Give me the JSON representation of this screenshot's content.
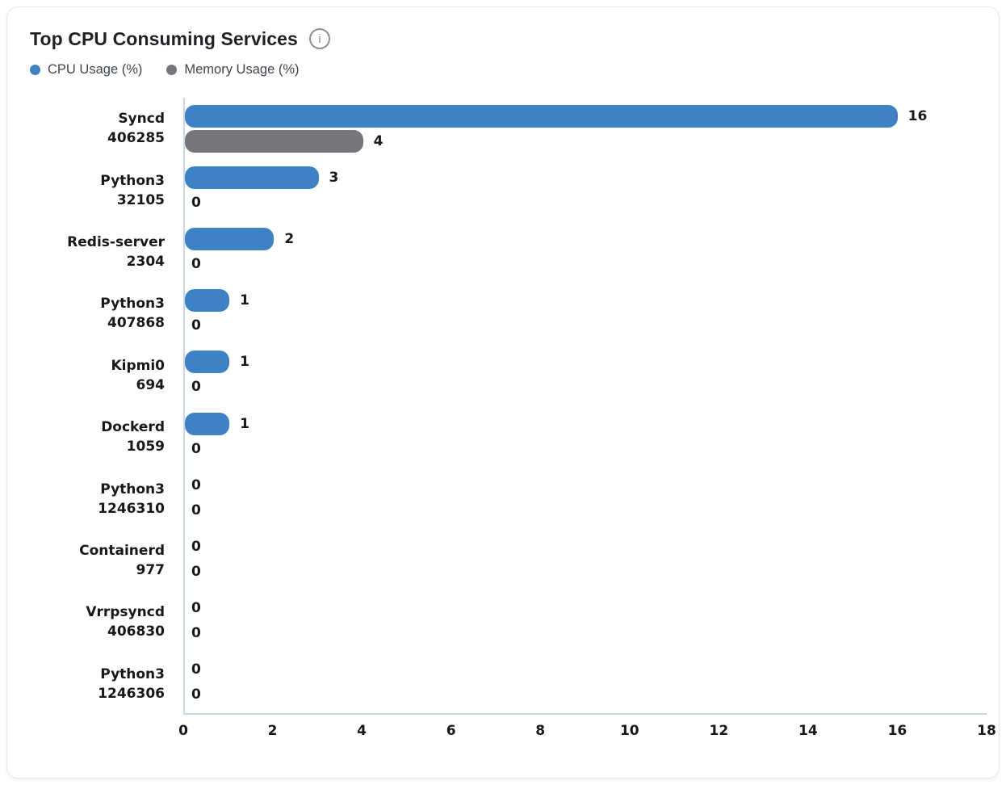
{
  "header": {
    "title": "Top CPU Consuming Services",
    "info_glyph": "i"
  },
  "chart_data": {
    "type": "bar",
    "orientation": "horizontal",
    "title": "Top CPU Consuming Services",
    "categories": [
      {
        "name": "Syncd",
        "id": "406285"
      },
      {
        "name": "Python3",
        "id": "32105"
      },
      {
        "name": "Redis-server",
        "id": "2304"
      },
      {
        "name": "Python3",
        "id": "407868"
      },
      {
        "name": "Kipmi0",
        "id": "694"
      },
      {
        "name": "Dockerd",
        "id": "1059"
      },
      {
        "name": "Python3",
        "id": "1246310"
      },
      {
        "name": "Containerd",
        "id": "977"
      },
      {
        "name": "Vrrpsyncd",
        "id": "406830"
      },
      {
        "name": "Python3",
        "id": "1246306"
      }
    ],
    "series": [
      {
        "name": "CPU Usage (%)",
        "color": "#3e82c4",
        "values": [
          16,
          3,
          2,
          1,
          1,
          1,
          0,
          0,
          0,
          0
        ]
      },
      {
        "name": "Memory Usage (%)",
        "color": "#75757a",
        "values": [
          4,
          0,
          0,
          0,
          0,
          0,
          0,
          0,
          0,
          0
        ]
      }
    ],
    "xlim": [
      0,
      18
    ],
    "xticks": [
      0,
      2,
      4,
      6,
      8,
      10,
      12,
      14,
      16,
      18
    ],
    "grid": false,
    "data_labels": true,
    "legend_position": "top-left",
    "axis_color": "#ccd6eb"
  }
}
